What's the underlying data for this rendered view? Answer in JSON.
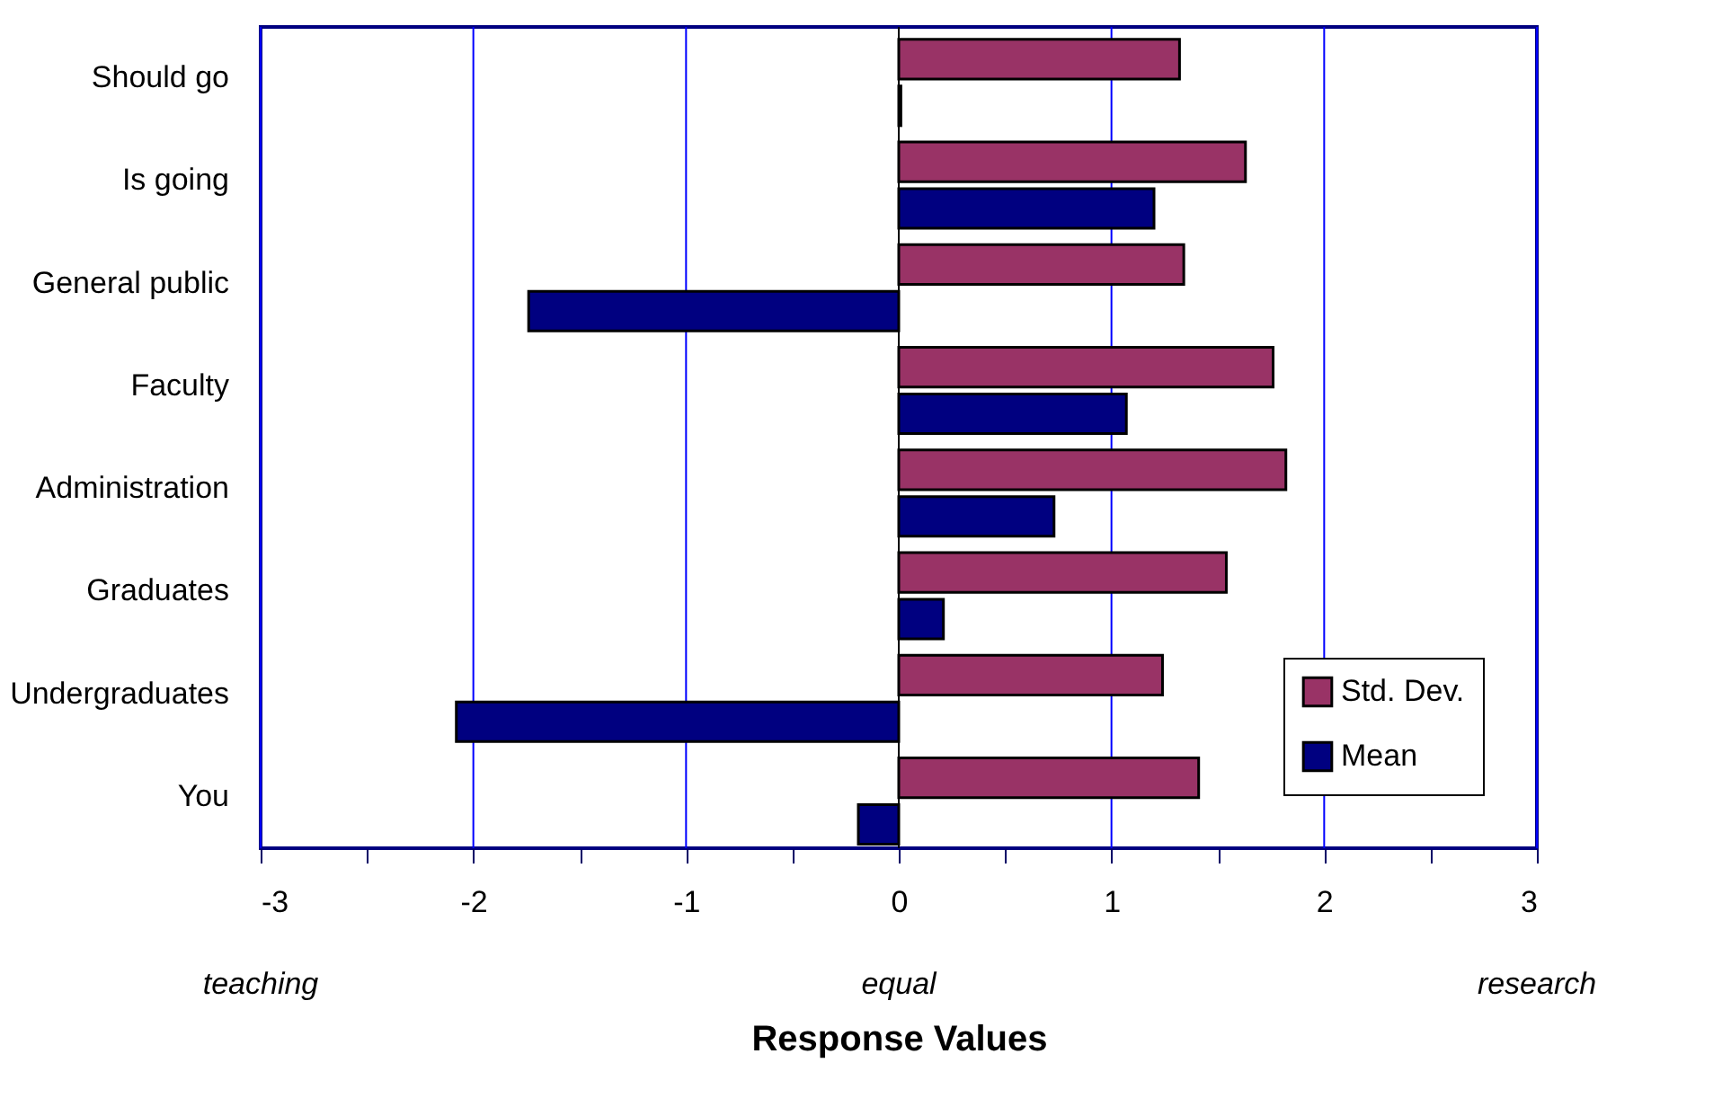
{
  "chart_data": {
    "type": "bar",
    "orientation": "horizontal",
    "xlabel": "Response Values",
    "categories": [
      "Should go",
      "Is going",
      "General public",
      "Faculty",
      "Administration",
      "Graduates",
      "Undergraduates",
      "You"
    ],
    "series": [
      {
        "name": "Std. Dev.",
        "color": "#993366",
        "values": [
          1.32,
          1.63,
          1.34,
          1.76,
          1.82,
          1.54,
          1.24,
          1.41
        ]
      },
      {
        "name": "Mean",
        "color": "#000080",
        "values": [
          0.01,
          1.2,
          -1.74,
          1.07,
          0.73,
          0.21,
          -2.08,
          -0.19
        ]
      }
    ],
    "xlim": [
      -3,
      3
    ],
    "xticks": [
      -3,
      {
        "value": -2.5,
        "label": null
      },
      -2,
      {
        "value": -1.5,
        "label": null
      },
      -1,
      {
        "value": -0.5,
        "label": null
      },
      0,
      {
        "value": 0.5,
        "label": null
      },
      1,
      {
        "value": 1.5,
        "label": null
      },
      2,
      {
        "value": 2.5,
        "label": null
      },
      3
    ],
    "grid": "x",
    "legend": "bottom right",
    "annotations": [
      "teaching",
      "equal",
      "research"
    ]
  }
}
